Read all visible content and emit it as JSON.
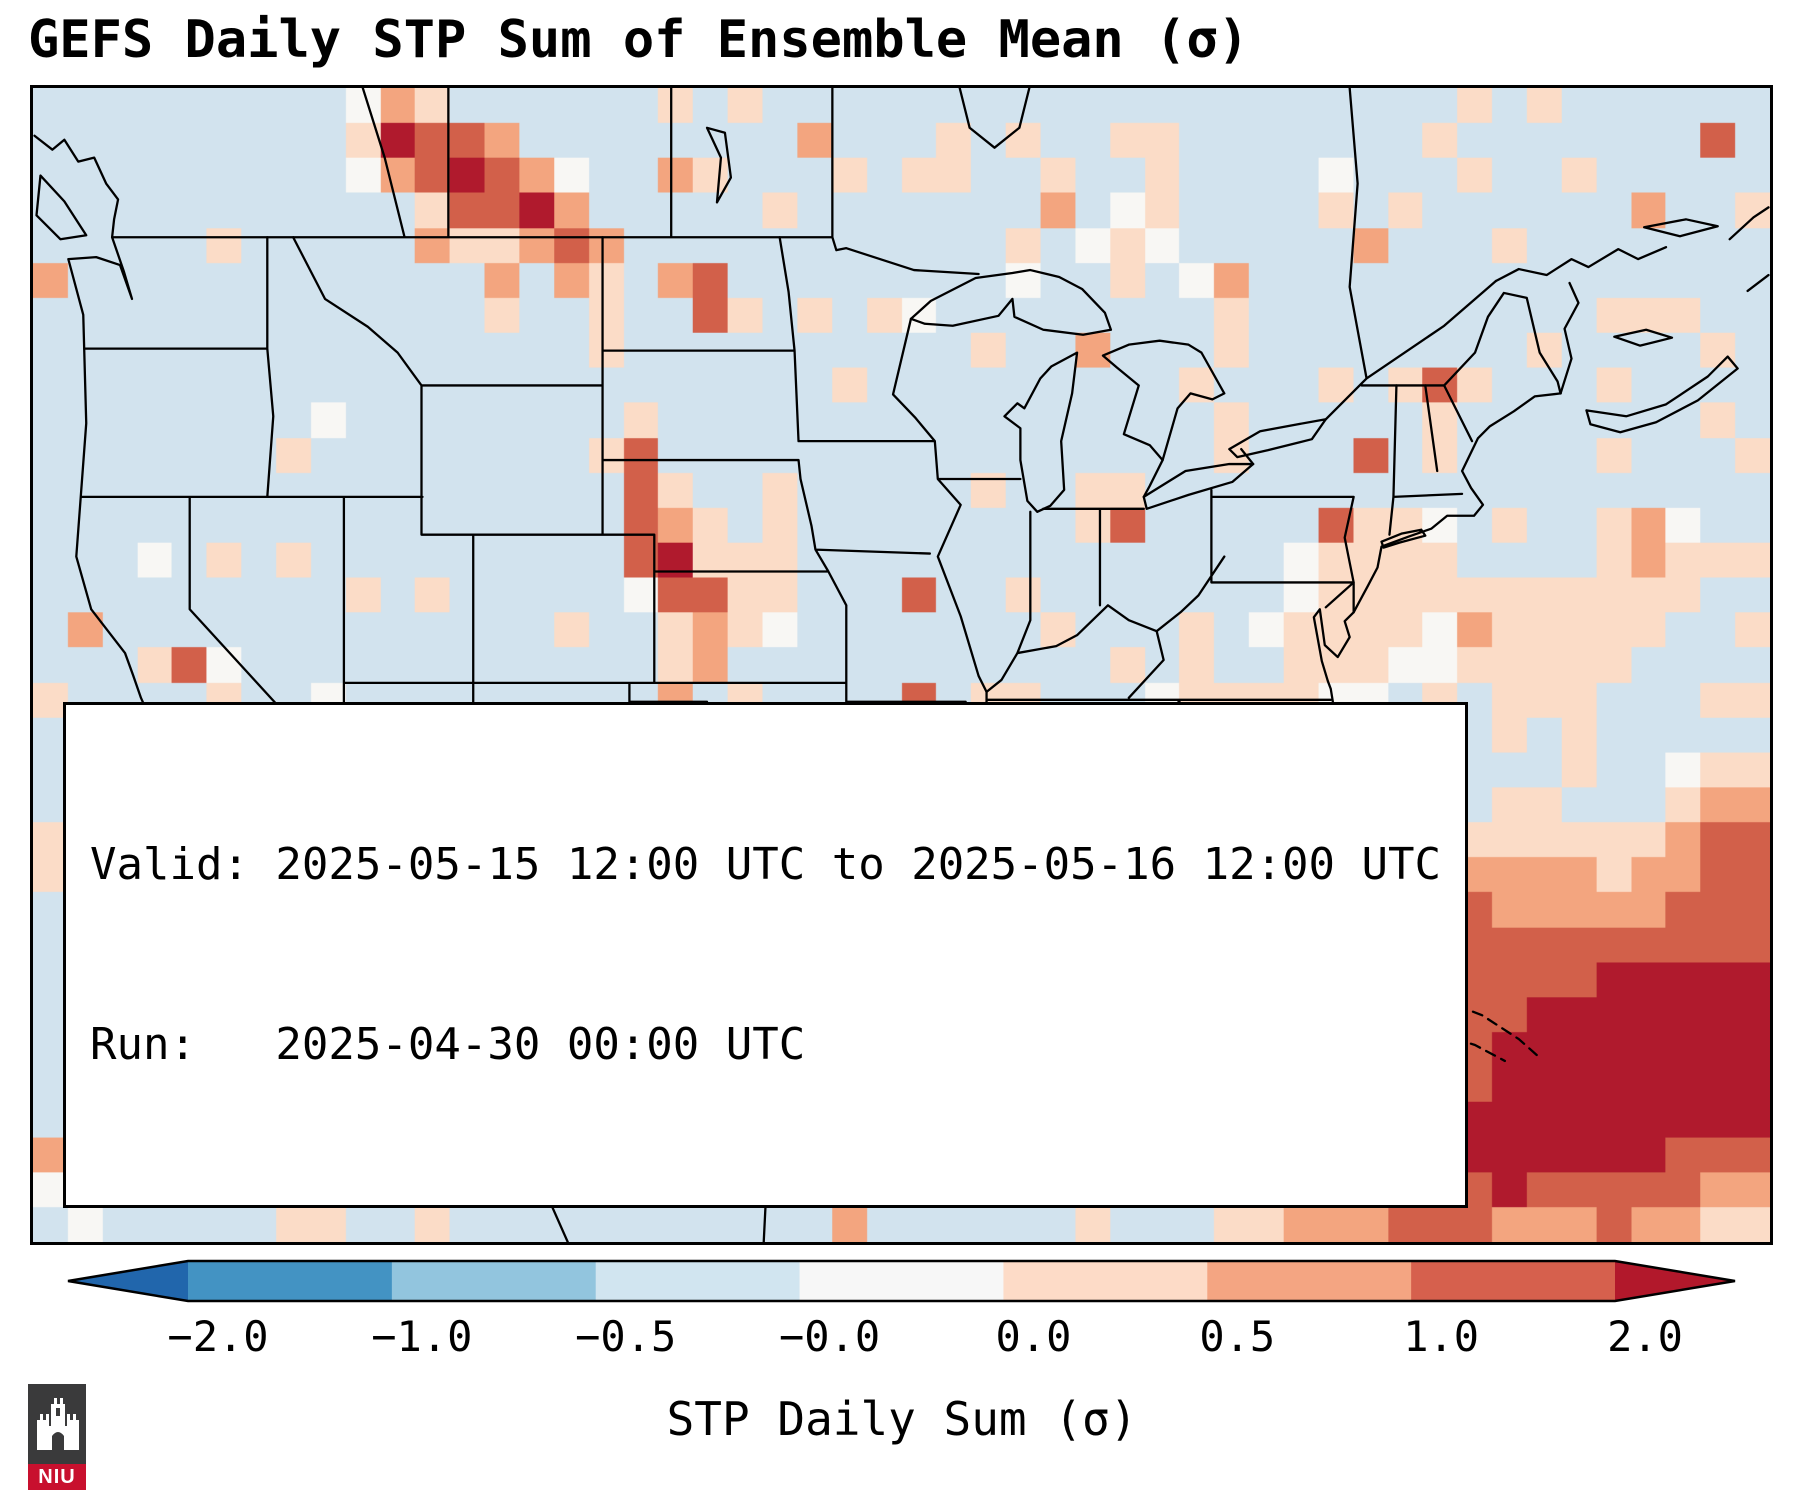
{
  "title": "GEFS Daily STP Sum of Ensemble Mean (σ)",
  "info_box": {
    "valid_line": "Valid: 2025-05-15 12:00 UTC to 2025-05-16 12:00 UTC",
    "run_line": "Run:   2025-04-30 00:00 UTC"
  },
  "colorbar": {
    "label": "STP Daily Sum (σ)",
    "ticks": [
      "−2.0",
      "−1.0",
      "−0.5",
      "−0.0",
      "0.0",
      "0.5",
      "1.0",
      "2.0"
    ],
    "segments": [
      "#4393c3",
      "#92c5de",
      "#d1e5f0",
      "#f7f7f7",
      "#fddbc7",
      "#f4a582",
      "#d6604d"
    ],
    "extend_left": "#2166ac",
    "extend_right": "#b2182b"
  },
  "logo": {
    "text": "NIU",
    "banner_color": "#c8102e",
    "shield_color": "#3a3a3b"
  },
  "chart_data": {
    "type": "heatmap",
    "title": "GEFS Daily STP Sum of Ensemble Mean (σ)",
    "colorbar_label": "STP Daily Sum (σ)",
    "valid": "2025-05-15 12:00 UTC to 2025-05-16 12:00 UTC",
    "run": "2025-04-30 00:00 UTC",
    "levels": [
      -2.0,
      -1.0,
      -0.5,
      -0.0,
      0.0,
      0.5,
      1.0,
      2.0
    ],
    "extend": "both",
    "paint_levels": [
      -2,
      -1,
      -0.5,
      -0.02,
      0.02,
      0.5,
      1,
      2
    ],
    "paint_colors": [
      "#2166ac",
      "#4393c3",
      "#92c5de",
      "#d2e3ee",
      "#f8f7f4",
      "#fbdcc7",
      "#f3a57f",
      "#d2604a",
      "#b01a2d"
    ],
    "grid": {
      "cols": 50,
      "rows": 33,
      "seed": 11,
      "base": -0.22
    },
    "hotspots": [
      {
        "x": 0.215,
        "y": 0.045,
        "r": 0.03,
        "v": 2.6
      },
      {
        "x": 0.255,
        "y": 0.075,
        "r": 0.034,
        "v": 2.8
      },
      {
        "x": 0.29,
        "y": 0.11,
        "r": 0.028,
        "v": 2.4
      },
      {
        "x": 0.315,
        "y": 0.15,
        "r": 0.02,
        "v": 1.9
      },
      {
        "x": 0.272,
        "y": 0.178,
        "r": 0.016,
        "v": 1.5
      },
      {
        "x": 0.33,
        "y": 0.21,
        "r": 0.014,
        "v": 1.4
      },
      {
        "x": 0.238,
        "y": 0.128,
        "r": 0.02,
        "v": 1.3
      },
      {
        "x": 0.455,
        "y": 0.045,
        "r": 0.018,
        "v": 1.1
      },
      {
        "x": 0.52,
        "y": 0.08,
        "r": 0.014,
        "v": 1.3
      },
      {
        "x": 0.575,
        "y": 0.035,
        "r": 0.012,
        "v": 1.0
      },
      {
        "x": 0.64,
        "y": 0.05,
        "r": 0.02,
        "v": 0.8
      },
      {
        "x": 0.655,
        "y": 0.09,
        "r": 0.018,
        "v": 1.5
      },
      {
        "x": 0.685,
        "y": 0.175,
        "r": 0.016,
        "v": 1.6
      },
      {
        "x": 0.63,
        "y": 0.14,
        "r": 0.03,
        "v": 0.7
      },
      {
        "x": 0.56,
        "y": 0.14,
        "r": 0.012,
        "v": 1.2
      },
      {
        "x": 0.345,
        "y": 0.315,
        "r": 0.018,
        "v": 1.6
      },
      {
        "x": 0.352,
        "y": 0.36,
        "r": 0.02,
        "v": 2.6
      },
      {
        "x": 0.362,
        "y": 0.405,
        "r": 0.022,
        "v": 3.0
      },
      {
        "x": 0.378,
        "y": 0.445,
        "r": 0.022,
        "v": 2.1
      },
      {
        "x": 0.385,
        "y": 0.49,
        "r": 0.018,
        "v": 1.6
      },
      {
        "x": 0.372,
        "y": 0.53,
        "r": 0.013,
        "v": 1.3
      },
      {
        "x": 0.41,
        "y": 0.43,
        "r": 0.05,
        "v": 0.7
      },
      {
        "x": 0.296,
        "y": 0.455,
        "r": 0.011,
        "v": -0.55
      },
      {
        "x": 0.302,
        "y": 0.52,
        "r": 0.011,
        "v": -0.5
      },
      {
        "x": 0.805,
        "y": 0.255,
        "r": 0.015,
        "v": 2.0
      },
      {
        "x": 0.815,
        "y": 0.3,
        "r": 0.018,
        "v": 1.1
      },
      {
        "x": 0.69,
        "y": 0.3,
        "r": 0.018,
        "v": 0.8
      },
      {
        "x": 0.78,
        "y": 0.43,
        "r": 0.1,
        "v": 0.3
      },
      {
        "x": 0.68,
        "y": 0.63,
        "r": 0.16,
        "v": 0.34
      },
      {
        "x": 0.55,
        "y": 0.72,
        "r": 0.12,
        "v": 0.28
      },
      {
        "x": 0.88,
        "y": 0.5,
        "r": 0.06,
        "v": 0.55
      },
      {
        "x": 0.93,
        "y": 0.42,
        "r": 0.05,
        "v": 0.5
      },
      {
        "x": 0.3,
        "y": 0.645,
        "r": 0.02,
        "v": 2.0
      },
      {
        "x": 0.315,
        "y": 0.69,
        "r": 0.016,
        "v": 1.5
      },
      {
        "x": 0.42,
        "y": 0.705,
        "r": 0.015,
        "v": 2.2
      },
      {
        "x": 0.46,
        "y": 0.66,
        "r": 0.05,
        "v": 0.55
      },
      {
        "x": 0.37,
        "y": 0.6,
        "r": 0.04,
        "v": 0.45
      },
      {
        "x": 0.088,
        "y": 0.5,
        "r": 0.011,
        "v": 1.7
      },
      {
        "x": 0.098,
        "y": 0.55,
        "r": 0.011,
        "v": 1.4
      },
      {
        "x": 0.07,
        "y": 0.42,
        "r": 0.009,
        "v": 0.9
      },
      {
        "x": 0.97,
        "y": 0.83,
        "r": 0.1,
        "v": 3.2
      },
      {
        "x": 0.9,
        "y": 0.88,
        "r": 0.09,
        "v": 2.6
      },
      {
        "x": 0.82,
        "y": 0.93,
        "r": 0.08,
        "v": 1.8
      },
      {
        "x": 0.86,
        "y": 0.74,
        "r": 0.08,
        "v": 1.2
      },
      {
        "x": 0.78,
        "y": 0.82,
        "r": 0.09,
        "v": 1.0
      },
      {
        "x": 0.74,
        "y": 0.95,
        "r": 0.07,
        "v": 1.2
      },
      {
        "x": 0.99,
        "y": 0.66,
        "r": 0.06,
        "v": 1.5
      },
      {
        "x": 0.73,
        "y": 0.7,
        "r": 0.06,
        "v": 0.6
      }
    ],
    "white_patches": [
      {
        "x": 0.165,
        "y": 0.475,
        "r": 0.02
      },
      {
        "x": 0.172,
        "y": 0.53,
        "r": 0.016
      },
      {
        "x": 0.19,
        "y": 0.72,
        "r": 0.032
      },
      {
        "x": 0.21,
        "y": 0.8,
        "r": 0.028
      },
      {
        "x": 0.225,
        "y": 0.87,
        "r": 0.024
      },
      {
        "x": 0.01,
        "y": 0.955,
        "r": 0.022
      },
      {
        "x": 0.015,
        "y": 0.02,
        "r": 0.016
      },
      {
        "x": 0.045,
        "y": 0.06,
        "r": 0.013
      }
    ]
  }
}
